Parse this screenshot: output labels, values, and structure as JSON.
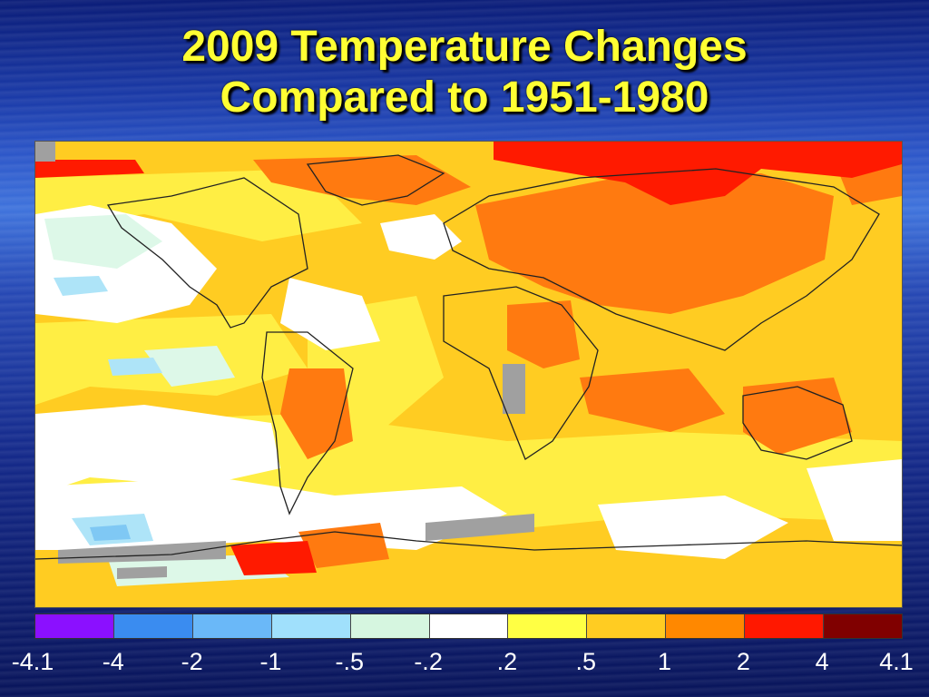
{
  "title": {
    "line1": "2009 Temperature Changes",
    "line2": "Compared to 1951-1980"
  },
  "map": {
    "colors": {
      "white": "#ffffff",
      "pale_green": "#ddf8e8",
      "light_blue": "#aee4f8",
      "sky_blue": "#7fc8f4",
      "yellow": "#ffee44",
      "light_orange": "#ffcc22",
      "orange": "#ff7a10",
      "red": "#ff1a00",
      "missing_gray": "#a0a0a0",
      "coastline": "#222222"
    }
  },
  "scale": {
    "colors": [
      "#8b10ff",
      "#3a8cf0",
      "#6ab8f8",
      "#a0e0fc",
      "#d6f6e0",
      "#ffffff",
      "#ffff44",
      "#ffcc22",
      "#ff8800",
      "#ff1800",
      "#800000"
    ],
    "labels": [
      "-4.1",
      "-4",
      "-2",
      "-1",
      "-.5",
      "-.2",
      ".2",
      ".5",
      "1",
      "2",
      "4",
      "4.1"
    ]
  }
}
